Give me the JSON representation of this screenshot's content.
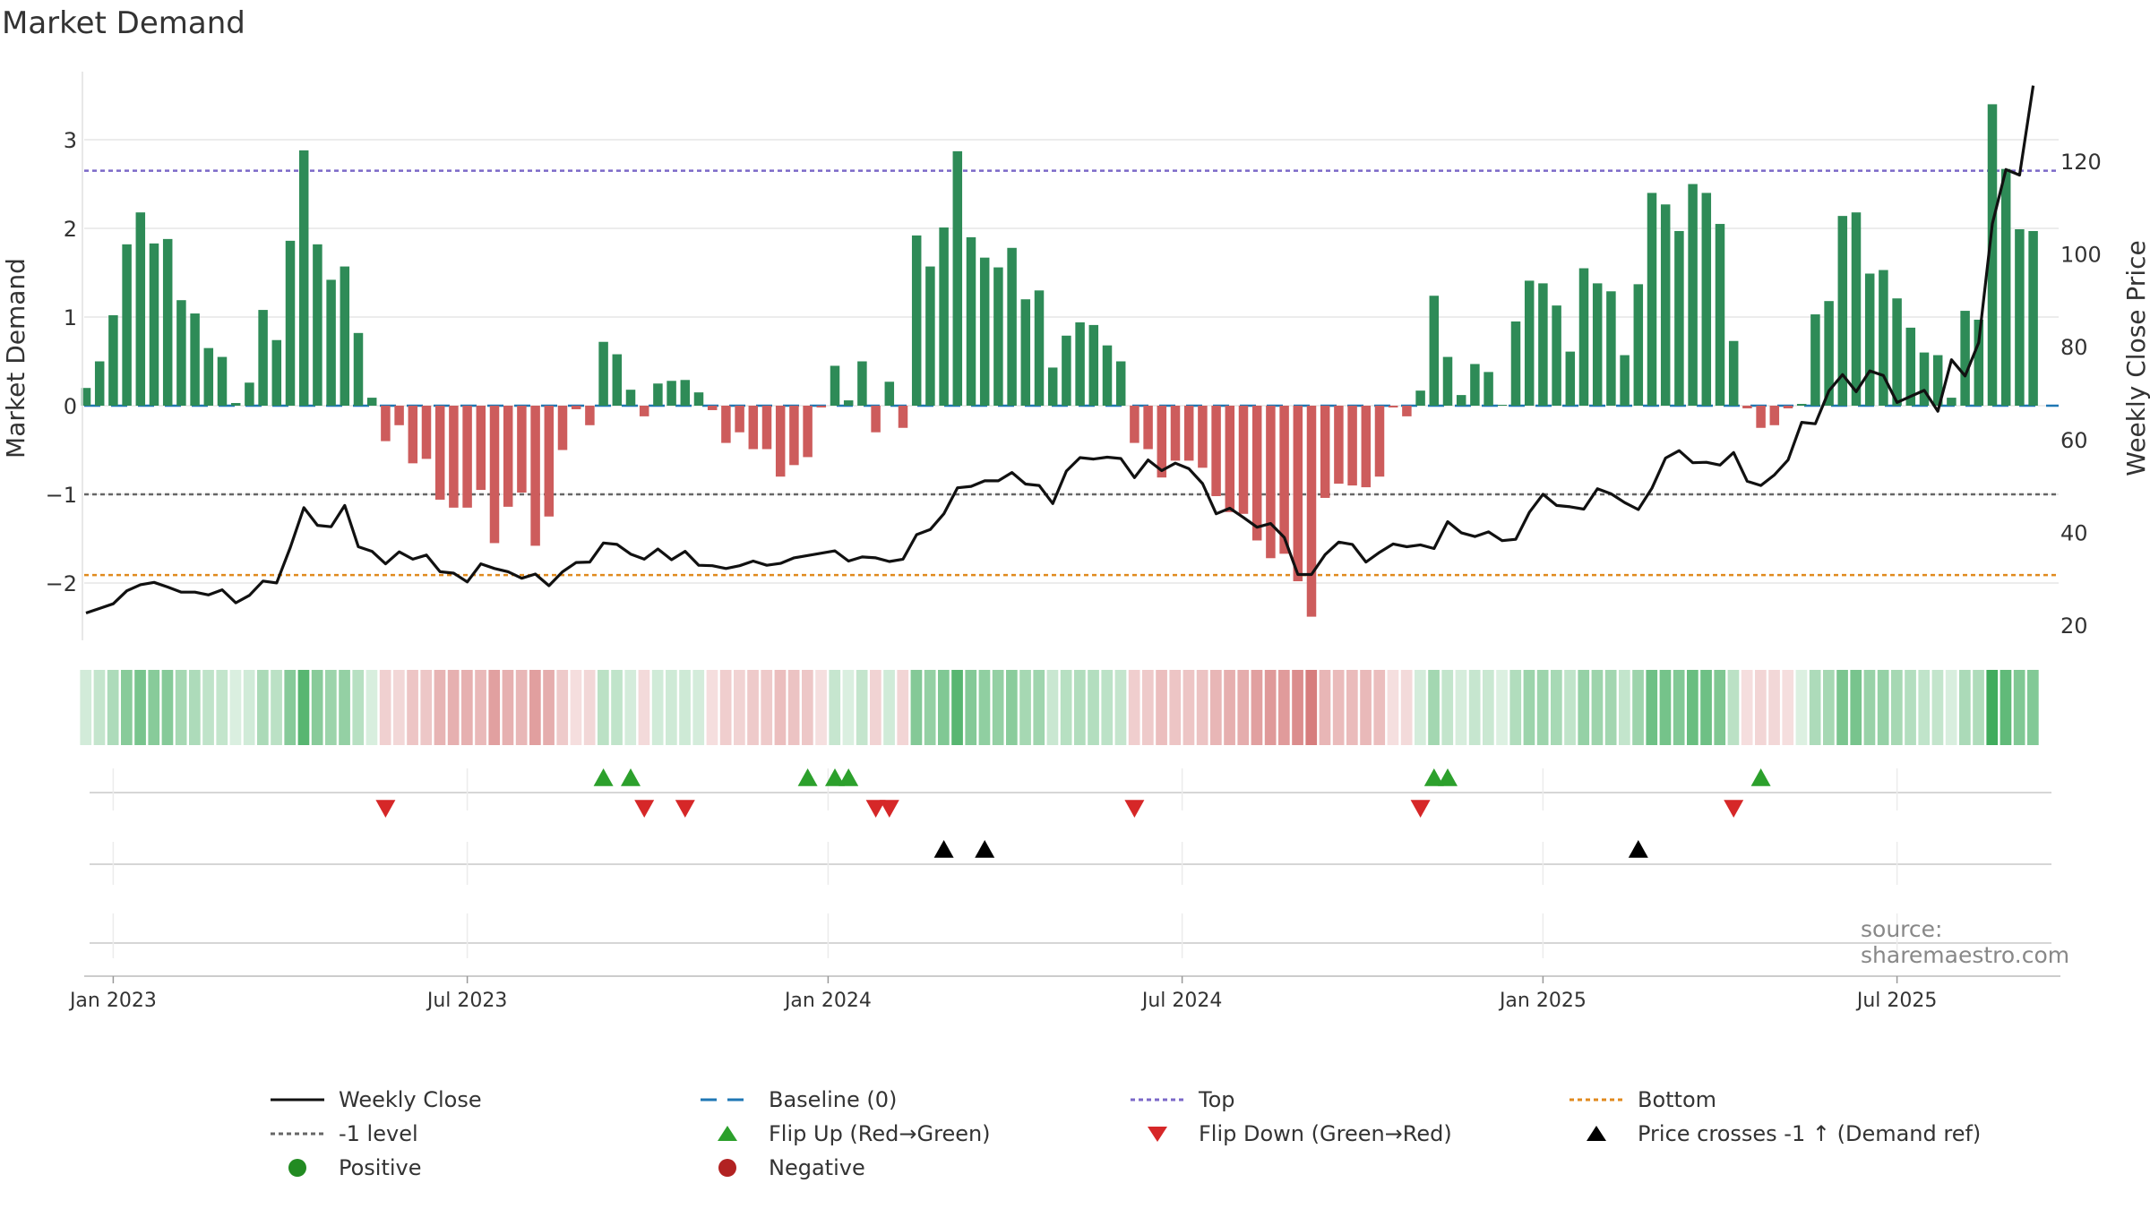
{
  "chart_title": "Market Demand",
  "source_text": "source: sharemaestro.com",
  "colors": {
    "positive": "#2e8b57",
    "negative": "#cd5c5c",
    "close_line": "#111111",
    "baseline": "#1f77b4",
    "top": "#7b68c8",
    "minus1": "#666666",
    "bottom": "#e08a1e",
    "flip_up": "#2ca02c",
    "flip_down": "#d62728",
    "cross": "#000000",
    "legend_positive": "#228b22",
    "legend_negative": "#b22222"
  },
  "chart_data": {
    "type": "bar",
    "title": "Market Demand",
    "ylabel": "Market Demand",
    "y2label": "Weekly Close Price",
    "ylim": [
      -2.7,
      3.55
    ],
    "y2lim": [
      14.1,
      136.3
    ],
    "yticks": [
      {
        "v": 3,
        "label": "3"
      },
      {
        "v": 2,
        "label": "2"
      },
      {
        "v": 1,
        "label": "1"
      },
      {
        "v": 0,
        "label": "0"
      },
      {
        "v": -1,
        "label": "−1"
      },
      {
        "v": -2,
        "label": "−2"
      }
    ],
    "y2ticks": [
      {
        "v": 120,
        "label": "120"
      },
      {
        "v": 100,
        "label": "100"
      },
      {
        "v": 80,
        "label": "80"
      },
      {
        "v": 60,
        "label": "60"
      },
      {
        "v": 40,
        "label": "40"
      },
      {
        "v": 20,
        "label": "20"
      }
    ],
    "xticks": [
      {
        "i": 2,
        "label": "Jan 2023"
      },
      {
        "i": 28,
        "label": "Jul 2023"
      },
      {
        "i": 54.5,
        "label": "Jan 2024"
      },
      {
        "i": 80.5,
        "label": "Jul 2024"
      },
      {
        "i": 107,
        "label": "Jan 2025"
      },
      {
        "i": 133,
        "label": "Jul 2025"
      }
    ],
    "levels": {
      "top": 2.65,
      "minus1": -1.0,
      "bottom": -1.91,
      "baseline": 0
    },
    "demand": [
      0.2,
      0.5,
      1.02,
      1.82,
      2.18,
      1.83,
      1.88,
      1.19,
      1.04,
      0.65,
      0.55,
      0.03,
      0.26,
      1.08,
      0.74,
      1.86,
      2.88,
      1.82,
      1.42,
      1.57,
      0.82,
      0.09,
      -0.4,
      -0.22,
      -0.65,
      -0.6,
      -1.06,
      -1.15,
      -1.15,
      -0.95,
      -1.55,
      -1.14,
      -0.98,
      -1.58,
      -1.25,
      -0.5,
      -0.04,
      -0.22,
      0.72,
      0.58,
      0.18,
      -0.12,
      0.25,
      0.28,
      0.29,
      0.15,
      -0.05,
      -0.42,
      -0.3,
      -0.49,
      -0.49,
      -0.8,
      -0.67,
      -0.58,
      -0.02,
      0.45,
      0.06,
      0.5,
      -0.3,
      0.27,
      -0.25,
      1.92,
      1.57,
      2.01,
      2.87,
      1.9,
      1.67,
      1.56,
      1.78,
      1.2,
      1.3,
      0.43,
      0.79,
      0.94,
      0.91,
      0.68,
      0.5,
      -0.42,
      -0.49,
      -0.81,
      -0.62,
      -0.62,
      -0.7,
      -1.02,
      -1.2,
      -1.22,
      -1.52,
      -1.72,
      -1.67,
      -1.98,
      -2.38,
      -1.04,
      -0.88,
      -0.9,
      -0.92,
      -0.8,
      -0.02,
      -0.12,
      0.17,
      1.24,
      0.55,
      0.12,
      0.47,
      0.38,
      0.01,
      0.95,
      1.41,
      1.38,
      1.13,
      0.61,
      1.55,
      1.38,
      1.29,
      0.57,
      1.37,
      2.4,
      2.27,
      1.97,
      2.5,
      2.4,
      2.05,
      0.73,
      -0.03,
      -0.25,
      -0.22,
      -0.03,
      0.02,
      1.03,
      1.18,
      2.14,
      2.18,
      1.49,
      1.53,
      1.21,
      0.88,
      0.6,
      0.57,
      0.09,
      1.07,
      0.97,
      3.4,
      2.67,
      1.99,
      1.97
    ],
    "close": [
      22.6,
      23.6,
      24.6,
      27.4,
      28.7,
      29.2,
      28.2,
      27.1,
      27.1,
      26.5,
      27.6,
      24.8,
      26.4,
      29.5,
      29.1,
      36.7,
      45.3,
      41.5,
      41.2,
      45.8,
      36.9,
      35.9,
      33.2,
      35.8,
      34.2,
      35.1,
      31.5,
      31.2,
      29.3,
      33.2,
      32.2,
      31.5,
      30.1,
      31.0,
      28.5,
      31.5,
      33.5,
      33.6,
      37.7,
      37.4,
      35.3,
      34.2,
      36.4,
      34.1,
      35.9,
      32.9,
      32.8,
      32.2,
      32.8,
      33.8,
      32.9,
      33.3,
      34.5,
      35.0,
      35.5,
      36.0,
      33.8,
      34.7,
      34.5,
      33.7,
      34.2,
      39.5,
      40.6,
      44.0,
      49.6,
      49.9,
      51.1,
      51.1,
      52.9,
      50.4,
      50.1,
      46.2,
      53.2,
      56.1,
      55.8,
      56.2,
      55.9,
      51.8,
      55.6,
      53.3,
      54.9,
      53.7,
      50.5,
      44.0,
      45.2,
      43.2,
      41.1,
      41.9,
      38.9,
      30.9,
      30.9,
      35.2,
      37.9,
      37.4,
      33.6,
      35.7,
      37.5,
      36.9,
      37.3,
      36.5,
      42.3,
      39.9,
      39.1,
      40.1,
      38.2,
      38.5,
      44.3,
      48.2,
      45.8,
      45.5,
      45.0,
      49.4,
      48.3,
      46.4,
      44.9,
      49.5,
      56.0,
      57.6,
      55.0,
      55.1,
      54.5,
      57.2,
      51.0,
      50.1,
      52.4,
      55.6,
      63.7,
      63.4,
      70.5,
      74.0,
      70.3,
      74.8,
      73.8,
      68.0,
      69.3,
      70.6,
      66.1,
      77.2,
      73.7,
      80.9,
      106.5,
      118.2,
      117.0,
      136.3
    ],
    "start_date": "Jan 2023",
    "frequency": "weekly",
    "markers": {
      "flip_up": [
        38,
        40,
        53,
        55,
        56,
        99,
        100,
        123
      ],
      "flip_down": [
        22,
        41,
        44,
        58,
        59,
        77,
        98,
        121
      ],
      "cross_up": [
        63,
        66,
        114
      ]
    },
    "legend": [
      {
        "label": "Weekly Close",
        "symbol": "line",
        "color": "#111111"
      },
      {
        "label": "Baseline (0)",
        "symbol": "dash",
        "color": "#1f77b4"
      },
      {
        "label": "Top",
        "symbol": "dot",
        "color": "#7b68c8"
      },
      {
        "label": "Bottom",
        "symbol": "dot",
        "color": "#e08a1e"
      },
      {
        "label": "-1 level",
        "symbol": "dot",
        "color": "#666666"
      },
      {
        "label": "Flip Up (Red→Green)",
        "symbol": "tri-up",
        "color": "#2ca02c"
      },
      {
        "label": "Flip Down (Green→Red)",
        "symbol": "tri-down",
        "color": "#d62728"
      },
      {
        "label": "Price crosses -1 ↑ (Demand ref)",
        "symbol": "tri-up",
        "color": "#000000"
      },
      {
        "label": "Positive",
        "symbol": "circle",
        "color": "#228b22"
      },
      {
        "label": "Negative",
        "symbol": "circle",
        "color": "#b22222"
      }
    ]
  }
}
